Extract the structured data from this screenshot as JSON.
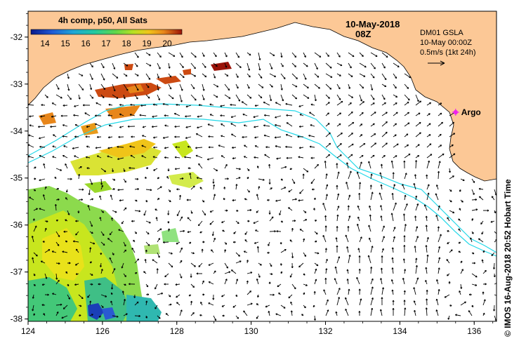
{
  "legend": {
    "title": "4h comp, p50, All Sats",
    "ticks": [
      "14",
      "15",
      "16",
      "17",
      "18",
      "19",
      "20"
    ],
    "colors": [
      "#0a1a8c",
      "#1f5ad6",
      "#1fa6d6",
      "#22c9a0",
      "#5fd64a",
      "#b9e021",
      "#f0c419",
      "#e8861a",
      "#cc4a12",
      "#9a1208"
    ]
  },
  "header": {
    "date": "10-May-2018",
    "time": "08Z"
  },
  "product": {
    "line1": "DM01 GSLA",
    "line2": "10-May 00:00Z",
    "line3": "0.5m/s (1kt 24h)"
  },
  "argo": {
    "label": "Argo",
    "lon": 135.5,
    "lat": -33.6,
    "color": "#ee22ee"
  },
  "axes": {
    "x_ticks": [
      "124",
      "126",
      "128",
      "130",
      "132",
      "134",
      "136"
    ],
    "y_ticks": [
      "-32",
      "-33",
      "-34",
      "-35",
      "-36",
      "-37",
      "-38"
    ],
    "lon_range": [
      124,
      136.6
    ],
    "lat_range": [
      -38.05,
      -31.45
    ]
  },
  "credit": "© IMOS 16-Aug-2018 20:52 Hobart Time",
  "colors": {
    "land": "#fcc896",
    "ocean": "#ffffff",
    "bathymetry": "#22d8e8",
    "arrows": "#000000"
  }
}
